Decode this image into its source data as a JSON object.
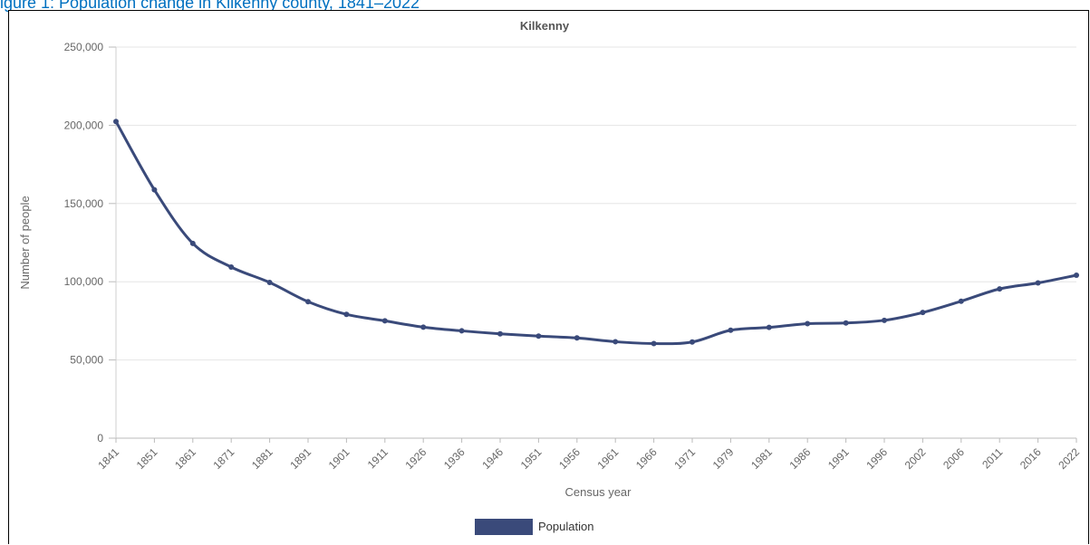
{
  "figure_caption": "igure 1: Population change in Kilkenny county, 1841–2022",
  "chart_data": {
    "type": "line",
    "title": "Kilkenny",
    "xlabel": "Census year",
    "ylabel": "Number of people",
    "ylim": [
      0,
      250000
    ],
    "yticks": [
      0,
      50000,
      100000,
      150000,
      200000,
      250000
    ],
    "ytick_labels": [
      "0",
      "50,000",
      "100,000",
      "150,000",
      "200,000",
      "250,000"
    ],
    "grid": true,
    "legend_position": "bottom-center",
    "categories": [
      "1841",
      "1851",
      "1861",
      "1871",
      "1881",
      "1891",
      "1901",
      "1911",
      "1926",
      "1936",
      "1946",
      "1951",
      "1956",
      "1961",
      "1966",
      "1971",
      "1979",
      "1981",
      "1986",
      "1991",
      "1996",
      "2002",
      "2006",
      "2011",
      "2016",
      "2022"
    ],
    "series": [
      {
        "name": "Population",
        "color": "#3a4a7a",
        "values": [
          202420,
          158748,
          124515,
          109379,
          99531,
          87261,
          79159,
          75000,
          70990,
          68614,
          66712,
          65273,
          64089,
          61668,
          60463,
          61473,
          69000,
          70806,
          73186,
          73635,
          75336,
          80339,
          87558,
          95419,
          99232,
          104160
        ]
      }
    ]
  }
}
